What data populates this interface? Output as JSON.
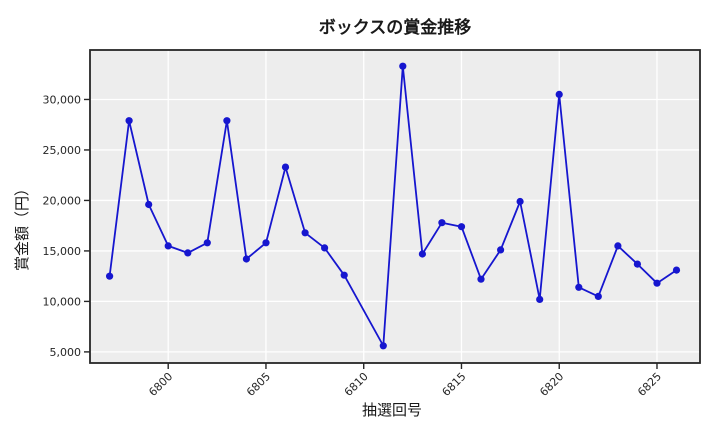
{
  "chart_data": {
    "type": "line",
    "title": "ボックスの賞金推移",
    "xlabel": "抽選回号",
    "ylabel": "賞金額（円）",
    "x": [
      6797,
      6798,
      6799,
      6800,
      6801,
      6802,
      6803,
      6804,
      6805,
      6806,
      6807,
      6808,
      6809,
      6811,
      6812,
      6813,
      6814,
      6815,
      6816,
      6817,
      6818,
      6819,
      6820,
      6821,
      6822,
      6823,
      6824,
      6825,
      6826
    ],
    "y": [
      12500,
      27900,
      19600,
      15500,
      14800,
      15800,
      27900,
      14200,
      15800,
      23300,
      16800,
      15300,
      12600,
      5600,
      33300,
      14700,
      17800,
      17400,
      12200,
      15100,
      19900,
      10200,
      30500,
      11400,
      10500,
      15500,
      13700,
      11800,
      13100
    ],
    "x_ticks": [
      6800,
      6805,
      6810,
      6815,
      6820,
      6825
    ],
    "x_tick_labels": [
      "6800",
      "6805",
      "6810",
      "6815",
      "6820",
      "6825"
    ],
    "y_ticks": [
      5000,
      10000,
      15000,
      20000,
      25000,
      30000
    ],
    "y_tick_labels": [
      "5,000",
      "10,000",
      "15,000",
      "20,000",
      "25,000",
      "30,000"
    ],
    "xlim": [
      6796,
      6827.2
    ],
    "ylim": [
      3900,
      34900
    ],
    "grid": true,
    "legend": "none",
    "line_color": "#1616cf",
    "marker_color": "#1616cf",
    "plot_bg_color": "#ededed",
    "grid_color": "#ffffff",
    "spine_color": "#262626",
    "text_color": "#1a1a1a"
  }
}
